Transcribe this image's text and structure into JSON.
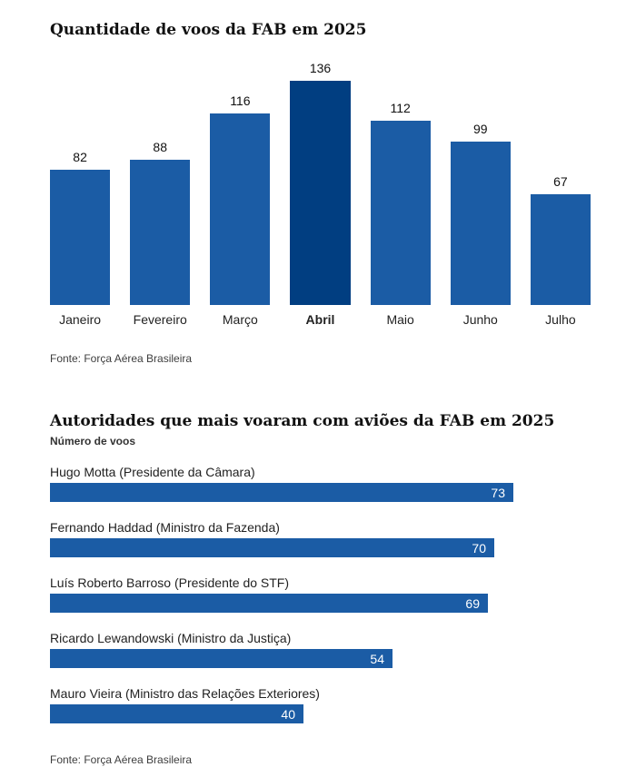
{
  "colors": {
    "bar_primary": "#1b5ca5",
    "bar_highlight": "#013e81",
    "value_on_bar": "#ffffff",
    "title_text": "#111111",
    "source_text": "#3d3d3d"
  },
  "chart1": {
    "title": "Quantidade de voos da FAB em 2025",
    "source": "Fonte: Força Aérea Brasileira"
  },
  "chart2": {
    "title": "Autoridades que mais voaram com aviões da FAB em 2025",
    "subtitle": "Número de voos",
    "source": "Fonte: Força Aérea Brasileira"
  },
  "chart_data": [
    {
      "type": "bar",
      "orientation": "vertical",
      "title": "Quantidade de voos da FAB em 2025",
      "categories": [
        "Janeiro",
        "Fevereiro",
        "Março",
        "Abril",
        "Maio",
        "Junho",
        "Julho"
      ],
      "values": [
        82,
        88,
        116,
        136,
        112,
        99,
        67
      ],
      "highlight_category": "Abril",
      "ylim": [
        0,
        136
      ],
      "grid": false,
      "value_labels": "above-bars",
      "source": "Fonte: Força Aérea Brasileira"
    },
    {
      "type": "bar",
      "orientation": "horizontal",
      "title": "Autoridades que mais voaram com aviões da FAB em 2025",
      "subtitle": "Número de voos",
      "categories": [
        "Hugo Motta (Presidente da Câmara)",
        "Fernando Haddad (Ministro da Fazenda)",
        "Luís Roberto Barroso (Presidente do STF)",
        "Ricardo Lewandowski (Ministro da Justiça)",
        "Mauro Vieira (Ministro das Relações Exteriores)"
      ],
      "values": [
        73,
        70,
        69,
        54,
        40
      ],
      "xlim": [
        0,
        73
      ],
      "grid": false,
      "value_labels": "inside-bar-end",
      "source": "Fonte: Força Aérea Brasileira"
    }
  ]
}
